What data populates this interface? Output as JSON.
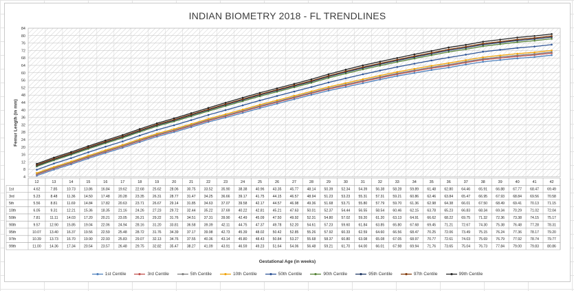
{
  "chart_data": {
    "type": "line",
    "title": "INDIAN BIOMETRY 2018 - FL TRENDLINES",
    "ylabel": "Femur Length (in mm)",
    "xlabel": "Gestational Age (in weeks)",
    "x": [
      12,
      13,
      14,
      15,
      16,
      17,
      18,
      19,
      20,
      21,
      22,
      23,
      24,
      25,
      26,
      27,
      28,
      29,
      30,
      31,
      32,
      33,
      34,
      35,
      36,
      37,
      38,
      39,
      40,
      41,
      42
    ],
    "ylim": [
      4,
      84
    ],
    "yticks": [
      4,
      8,
      12,
      16,
      20,
      24,
      28,
      32,
      36,
      40,
      44,
      48,
      52,
      56,
      60,
      64,
      68,
      72,
      76,
      80,
      84
    ],
    "grid": true,
    "legend_position": "bottom",
    "series": [
      {
        "name": "1st Centile",
        "color": "#4f81bd",
        "values": [
          4.62,
          7.85,
          10.73,
          13.86,
          16.84,
          19.62,
          22.68,
          25.62,
          28.06,
          30.75,
          33.52,
          35.9,
          38.38,
          40.96,
          43.35,
          45.77,
          48.14,
          50.39,
          52.34,
          54.39,
          56.38,
          58.28,
          59.89,
          61.48,
          62.8,
          64.46,
          65.91,
          66.88,
          67.77,
          68.47,
          69.49
        ]
      },
      {
        "name": "3rd Centile",
        "color": "#c0504d",
        "values": [
          5.23,
          8.48,
          11.36,
          14.5,
          17.48,
          20.28,
          23.35,
          26.31,
          28.77,
          31.47,
          34.25,
          36.66,
          39.17,
          41.75,
          44.15,
          46.57,
          48.94,
          51.23,
          53.23,
          55.31,
          57.31,
          59.21,
          60.86,
          62.46,
          63.84,
          65.47,
          66.95,
          67.93,
          68.84,
          69.56,
          70.58
        ]
      },
      {
        "name": "5th Centile",
        "color": "#7f7f7f",
        "values": [
          5.56,
          8.81,
          11.69,
          14.84,
          17.82,
          20.63,
          23.71,
          26.67,
          29.14,
          31.85,
          34.63,
          37.07,
          39.58,
          42.17,
          44.57,
          46.98,
          49.36,
          51.68,
          53.71,
          55.8,
          57.79,
          59.7,
          61.36,
          62.98,
          64.38,
          66.01,
          67.5,
          68.49,
          69.41,
          70.13,
          71.15
        ]
      },
      {
        "name": "10th Centile",
        "color": "#f0a30a",
        "values": [
          6.05,
          9.31,
          12.21,
          15.36,
          18.35,
          21.16,
          24.26,
          27.23,
          29.72,
          32.44,
          35.22,
          37.69,
          40.22,
          42.81,
          45.21,
          47.63,
          50.01,
          52.37,
          54.44,
          56.55,
          58.54,
          60.46,
          62.15,
          63.78,
          65.23,
          66.83,
          68.34,
          69.34,
          70.29,
          71.02,
          72.04
        ]
      },
      {
        "name": "50th Centile",
        "color": "#2f5597",
        "values": [
          7.81,
          11.11,
          14.03,
          17.2,
          20.21,
          23.05,
          26.21,
          29.22,
          31.76,
          34.51,
          37.31,
          39.9,
          42.49,
          45.09,
          47.5,
          49.92,
          52.31,
          54.8,
          57.02,
          59.2,
          61.2,
          63.13,
          64.91,
          66.62,
          68.22,
          69.75,
          71.32,
          72.36,
          73.38,
          74.15,
          75.17
        ]
      },
      {
        "name": "90th Centile",
        "color": "#548235",
        "values": [
          9.57,
          12.9,
          15.85,
          19.04,
          22.06,
          24.94,
          28.16,
          31.2,
          33.81,
          36.58,
          39.39,
          42.11,
          44.75,
          47.37,
          49.78,
          52.2,
          54.61,
          57.23,
          59.6,
          61.84,
          63.85,
          65.8,
          67.68,
          69.45,
          71.21,
          72.67,
          74.3,
          75.38,
          76.48,
          77.28,
          78.31
        ]
      },
      {
        "name": "95th Centile",
        "color": "#1f3864",
        "values": [
          10.07,
          13.4,
          16.37,
          19.56,
          22.59,
          25.48,
          28.72,
          31.76,
          34.39,
          37.17,
          39.98,
          42.73,
          45.39,
          48.02,
          50.42,
          52.85,
          55.26,
          57.92,
          60.33,
          62.59,
          64.6,
          66.56,
          68.47,
          70.25,
          72.06,
          73.49,
          75.15,
          76.24,
          77.36,
          78.17,
          79.2
        ]
      },
      {
        "name": "97th Centile",
        "color": "#843c0c",
        "values": [
          10.39,
          13.73,
          16.7,
          19.9,
          22.93,
          25.83,
          29.07,
          32.13,
          34.76,
          37.55,
          40.36,
          43.14,
          45.8,
          48.43,
          50.84,
          53.27,
          55.68,
          58.37,
          60.8,
          63.08,
          65.08,
          67.05,
          68.97,
          70.77,
          72.61,
          74.03,
          75.69,
          76.79,
          77.92,
          78.74,
          79.77
        ]
      },
      {
        "name": "99th Centile",
        "color": "#262626",
        "values": [
          11.0,
          14.36,
          17.34,
          20.54,
          23.57,
          26.48,
          29.75,
          32.82,
          35.47,
          38.27,
          41.09,
          43.91,
          46.59,
          49.23,
          51.64,
          54.06,
          56.48,
          59.21,
          61.7,
          64.0,
          66.01,
          67.98,
          69.94,
          71.76,
          73.65,
          75.04,
          76.73,
          77.84,
          79.0,
          79.83,
          80.86
        ]
      }
    ],
    "table_row_labels": [
      "1st",
      "3rd",
      "5th",
      "10th",
      "50th",
      "90th",
      "95th",
      "97th",
      "99th"
    ]
  }
}
